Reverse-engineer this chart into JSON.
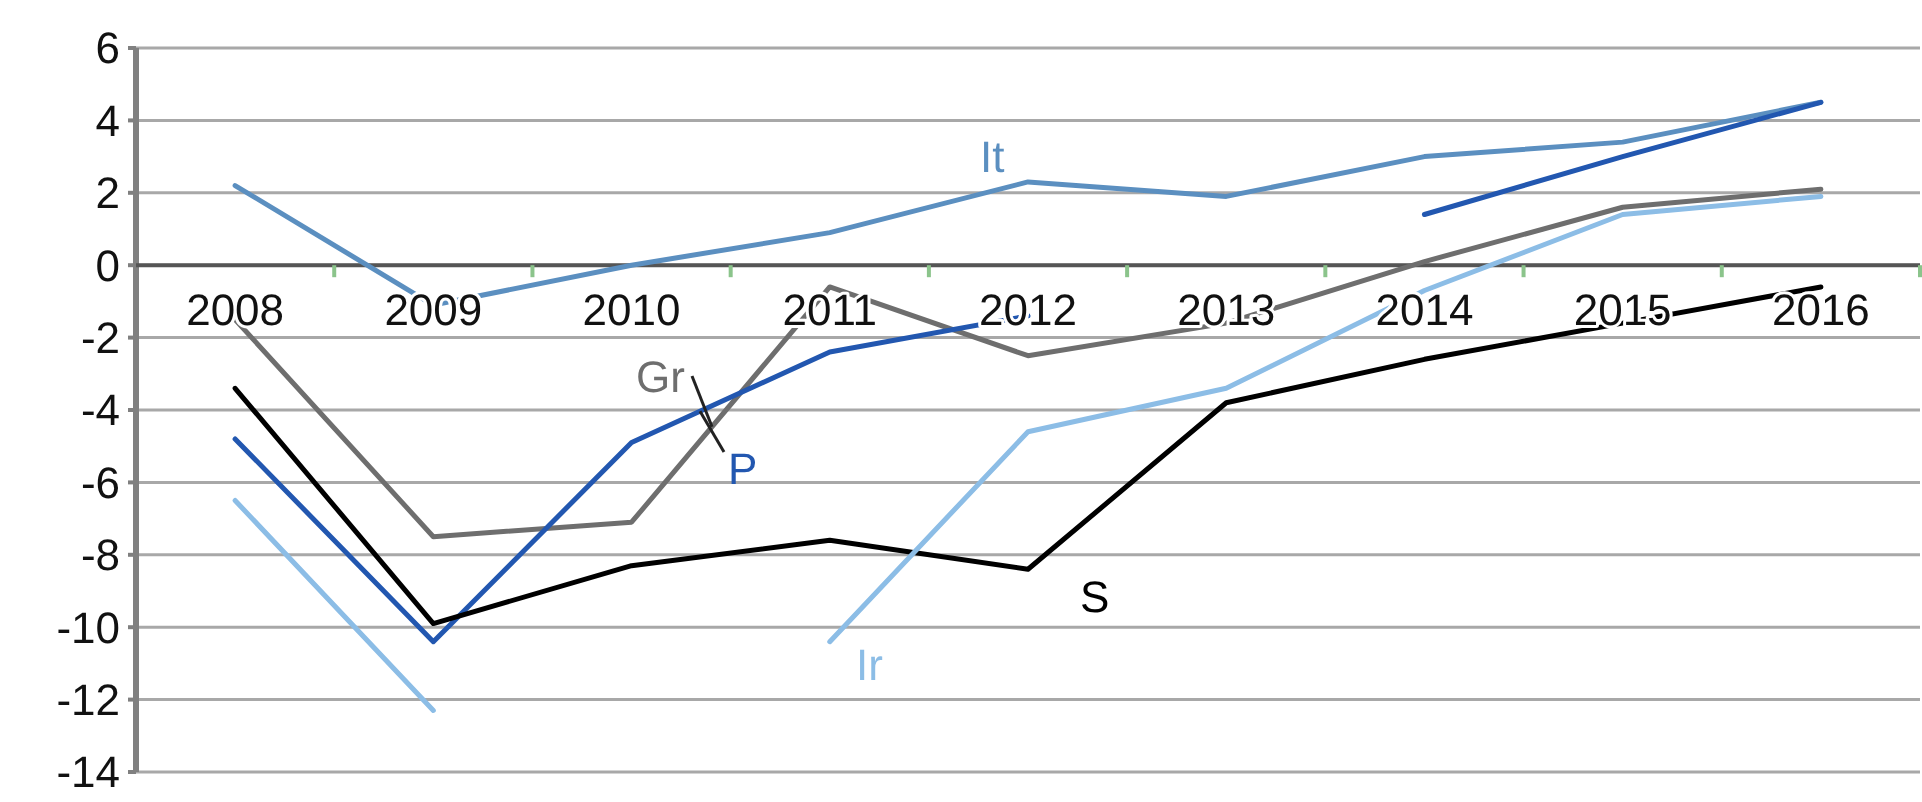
{
  "chart_data": {
    "type": "line",
    "categories": [
      "2008",
      "2009",
      "2010",
      "2011",
      "2012",
      "2013",
      "2014",
      "2015",
      "2016"
    ],
    "series": [
      {
        "name": "It",
        "color": "#5b8fc0",
        "values": [
          2.2,
          -1.1,
          0,
          0.9,
          2.3,
          1.9,
          3.0,
          3.4,
          4.5
        ]
      },
      {
        "name": "Gr",
        "color": "#6e6e6e",
        "values": [
          -1.5,
          -7.5,
          -7.1,
          -0.6,
          -2.5,
          -1.6,
          0.1,
          1.6,
          2.1
        ]
      },
      {
        "name": "P",
        "color": "#2257b0",
        "values": [
          -4.8,
          -10.4,
          -4.9,
          -2.4,
          -1.4,
          null,
          1.4,
          3.0,
          4.5
        ]
      },
      {
        "name": "S",
        "color": "#000000",
        "values": [
          -3.4,
          -9.9,
          -8.3,
          -7.6,
          -8.4,
          -3.8,
          -2.6,
          -1.6,
          -0.6
        ]
      },
      {
        "name": "Ir",
        "color": "#8cbde6",
        "values": [
          -6.5,
          -12.3,
          null,
          -10.4,
          -4.6,
          -3.4,
          -0.7,
          1.4,
          1.9
        ]
      }
    ],
    "ylim": [
      -14,
      6
    ],
    "yticks": [
      -14,
      -12,
      -10,
      -8,
      -6,
      -4,
      -2,
      0,
      2,
      4,
      6
    ],
    "grid": "y",
    "legend": false,
    "marker": "none",
    "line_style": "solid"
  }
}
